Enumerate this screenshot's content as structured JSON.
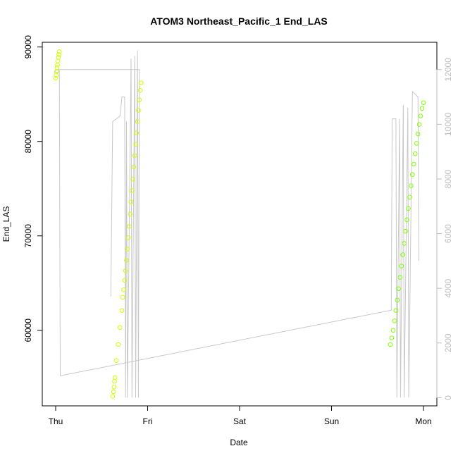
{
  "chart_data": {
    "type": "scatter",
    "title": "ATOM3 Northeast_Pacific_1 End_LAS",
    "xlabel": "Date",
    "ylabel": "End_LAS",
    "x_categories": [
      "Thu",
      "Fri",
      "Sat",
      "Sun",
      "Mon"
    ],
    "y_ticks": [
      60000,
      70000,
      80000,
      90000
    ],
    "y_ticks_right": [
      0,
      2000,
      4000,
      6000,
      8000,
      10000,
      12000
    ],
    "ylim": [
      52000,
      90500
    ],
    "ylim_right": [
      -300,
      13000
    ],
    "grid": false,
    "colors": {
      "points_early": "#ccff00",
      "points_late": "#7fff00",
      "line": "#c8c8c8",
      "axis": "#000000",
      "right_axis": "#bdbdbd"
    },
    "series": [
      {
        "marker": "circle",
        "points": [
          {
            "x": 0.0,
            "y": 86700
          },
          {
            "x": 0.005,
            "y": 87000
          },
          {
            "x": 0.01,
            "y": 87400
          },
          {
            "x": 0.015,
            "y": 87800
          },
          {
            "x": 0.02,
            "y": 88100
          },
          {
            "x": 0.025,
            "y": 88500
          },
          {
            "x": 0.03,
            "y": 88900
          },
          {
            "x": 0.035,
            "y": 89200
          },
          {
            "x": 0.04,
            "y": 89500
          },
          {
            "x": 0.62,
            "y": 53000
          },
          {
            "x": 0.63,
            "y": 53500
          },
          {
            "x": 0.635,
            "y": 54000
          },
          {
            "x": 0.64,
            "y": 54600
          },
          {
            "x": 0.645,
            "y": 55000
          },
          {
            "x": 0.66,
            "y": 56800
          },
          {
            "x": 0.68,
            "y": 58500
          },
          {
            "x": 0.7,
            "y": 60300
          },
          {
            "x": 0.72,
            "y": 62100
          },
          {
            "x": 0.73,
            "y": 63500
          },
          {
            "x": 0.74,
            "y": 64300
          },
          {
            "x": 0.75,
            "y": 65300
          },
          {
            "x": 0.76,
            "y": 66300
          },
          {
            "x": 0.77,
            "y": 67400
          },
          {
            "x": 0.78,
            "y": 68600
          },
          {
            "x": 0.79,
            "y": 69800
          },
          {
            "x": 0.8,
            "y": 71000
          },
          {
            "x": 0.81,
            "y": 72300
          },
          {
            "x": 0.82,
            "y": 73600
          },
          {
            "x": 0.83,
            "y": 74800
          },
          {
            "x": 0.84,
            "y": 76000
          },
          {
            "x": 0.85,
            "y": 77300
          },
          {
            "x": 0.86,
            "y": 78500
          },
          {
            "x": 0.87,
            "y": 79700
          },
          {
            "x": 0.88,
            "y": 80900
          },
          {
            "x": 0.89,
            "y": 82100
          },
          {
            "x": 0.9,
            "y": 83300
          },
          {
            "x": 0.91,
            "y": 84400
          },
          {
            "x": 0.92,
            "y": 85400
          },
          {
            "x": 0.93,
            "y": 86200
          }
        ]
      },
      {
        "marker": "circle",
        "points": [
          {
            "x": 3.64,
            "y": 58500
          },
          {
            "x": 3.655,
            "y": 59200
          },
          {
            "x": 3.67,
            "y": 60000
          },
          {
            "x": 3.685,
            "y": 61000
          },
          {
            "x": 3.7,
            "y": 62100
          },
          {
            "x": 3.715,
            "y": 63200
          },
          {
            "x": 3.73,
            "y": 64400
          },
          {
            "x": 3.745,
            "y": 65600
          },
          {
            "x": 3.76,
            "y": 66800
          },
          {
            "x": 3.775,
            "y": 68000
          },
          {
            "x": 3.79,
            "y": 69200
          },
          {
            "x": 3.805,
            "y": 70500
          },
          {
            "x": 3.82,
            "y": 71700
          },
          {
            "x": 3.835,
            "y": 72900
          },
          {
            "x": 3.85,
            "y": 74100
          },
          {
            "x": 3.865,
            "y": 75300
          },
          {
            "x": 3.88,
            "y": 76500
          },
          {
            "x": 3.895,
            "y": 77600
          },
          {
            "x": 3.91,
            "y": 78700
          },
          {
            "x": 3.925,
            "y": 79800
          },
          {
            "x": 3.94,
            "y": 80800
          },
          {
            "x": 3.955,
            "y": 81800
          },
          {
            "x": 3.97,
            "y": 82700
          },
          {
            "x": 3.985,
            "y": 83500
          },
          {
            "x": 4.0,
            "y": 84100
          }
        ]
      },
      {
        "type": "line",
        "axis": "right",
        "points": [
          {
            "x": 0.0,
            "y": 12000
          },
          {
            "x": 0.0,
            "y": 11900
          },
          {
            "x": 0.03,
            "y": 11900
          },
          {
            "x": 0.04,
            "y": 12000
          },
          {
            "x": 0.05,
            "y": 800
          },
          {
            "x": 3.65,
            "y": 3200
          },
          {
            "x": 3.66,
            "y": 10200
          },
          {
            "x": 3.7,
            "y": 10200
          },
          {
            "x": 3.71,
            "y": 0
          },
          {
            "x": 3.74,
            "y": 10200
          },
          {
            "x": 3.75,
            "y": 0
          },
          {
            "x": 3.78,
            "y": 10700
          },
          {
            "x": 3.79,
            "y": 0
          },
          {
            "x": 3.83,
            "y": 10600
          },
          {
            "x": 3.84,
            "y": 0
          },
          {
            "x": 3.88,
            "y": 11200
          },
          {
            "x": 3.94,
            "y": 11000
          },
          {
            "x": 3.95,
            "y": 5000
          }
        ]
      },
      {
        "type": "line",
        "axis": "right",
        "points": [
          {
            "x": 0.6,
            "y": 3700
          },
          {
            "x": 0.62,
            "y": 10100
          },
          {
            "x": 0.7,
            "y": 10300
          },
          {
            "x": 0.72,
            "y": 11000
          },
          {
            "x": 0.75,
            "y": 11000
          },
          {
            "x": 0.76,
            "y": 0
          },
          {
            "x": 0.77,
            "y": 10100
          },
          {
            "x": 0.78,
            "y": 0
          },
          {
            "x": 0.82,
            "y": 12400
          },
          {
            "x": 0.83,
            "y": 0
          },
          {
            "x": 0.86,
            "y": 12500
          },
          {
            "x": 0.87,
            "y": 0
          },
          {
            "x": 0.89,
            "y": 12700
          },
          {
            "x": 0.9,
            "y": 0
          },
          {
            "x": 0.91,
            "y": 12000
          },
          {
            "x": 0.0,
            "y": 12000
          }
        ]
      }
    ]
  }
}
